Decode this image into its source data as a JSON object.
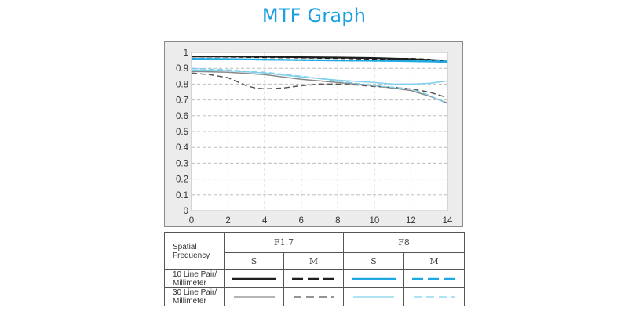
{
  "title": "MTF Graph",
  "chart_data": {
    "type": "line",
    "xlim": [
      0,
      14
    ],
    "ylim": [
      0,
      1
    ],
    "x_ticks": [
      "0",
      "2",
      "4",
      "6",
      "8",
      "10",
      "12",
      "14"
    ],
    "y_ticks": [
      "0",
      "0.1",
      "0.2",
      "0.3",
      "0.4",
      "0.5",
      "0.6",
      "0.7",
      "0.8",
      "0.9",
      "1"
    ],
    "grid": true,
    "colors": {
      "black": "#1e1e1e",
      "dark_gray": "#555555",
      "gray": "#888888",
      "blue": "#1fa9e0",
      "light_blue": "#7fd0ec"
    },
    "series": [
      {
        "aperture": "F1.7",
        "frequency": "10 Line Pair/ Millimeter",
        "direction": "S",
        "style": "solid",
        "color_key": "black",
        "x": [
          0,
          2,
          4,
          6,
          8,
          10,
          12,
          13,
          14
        ],
        "y": [
          0.975,
          0.975,
          0.973,
          0.97,
          0.968,
          0.965,
          0.958,
          0.953,
          0.948
        ]
      },
      {
        "aperture": "F1.7",
        "frequency": "10 Line Pair/ Millimeter",
        "direction": "M",
        "style": "dashed",
        "color_key": "black",
        "x": [
          0,
          2,
          4,
          6,
          8,
          10,
          12,
          13,
          14
        ],
        "y": [
          0.975,
          0.973,
          0.97,
          0.968,
          0.965,
          0.96,
          0.96,
          0.955,
          0.935
        ]
      },
      {
        "aperture": "F1.7",
        "frequency": "30 Line Pair/ Millimeter",
        "direction": "S",
        "style": "solid",
        "color_key": "gray",
        "x": [
          0,
          2,
          4,
          6,
          8,
          10,
          12,
          13,
          14
        ],
        "y": [
          0.88,
          0.875,
          0.86,
          0.83,
          0.81,
          0.79,
          0.76,
          0.725,
          0.68
        ]
      },
      {
        "aperture": "F1.7",
        "frequency": "30 Line Pair/ Millimeter",
        "direction": "M",
        "style": "dashed",
        "color_key": "dark_gray",
        "x": [
          0,
          1,
          2,
          3,
          3.5,
          4,
          5,
          6,
          7,
          8,
          9,
          10,
          11,
          12,
          13,
          14
        ],
        "y": [
          0.87,
          0.86,
          0.84,
          0.79,
          0.775,
          0.77,
          0.775,
          0.79,
          0.8,
          0.8,
          0.795,
          0.785,
          0.78,
          0.77,
          0.75,
          0.715
        ]
      },
      {
        "aperture": "F8",
        "frequency": "10 Line Pair/ Millimeter",
        "direction": "S",
        "style": "solid",
        "color_key": "blue",
        "x": [
          0,
          2,
          4,
          6,
          8,
          10,
          12,
          13,
          14
        ],
        "y": [
          0.96,
          0.958,
          0.955,
          0.952,
          0.95,
          0.948,
          0.945,
          0.943,
          0.94
        ]
      },
      {
        "aperture": "F8",
        "frequency": "10 Line Pair/ Millimeter",
        "direction": "M",
        "style": "dashed",
        "color_key": "blue",
        "x": [
          0,
          2,
          4,
          6,
          8,
          10,
          12,
          13,
          14
        ],
        "y": [
          0.96,
          0.958,
          0.955,
          0.952,
          0.95,
          0.948,
          0.946,
          0.945,
          0.945
        ]
      },
      {
        "aperture": "F8",
        "frequency": "30 Line Pair/ Millimeter",
        "direction": "S",
        "style": "solid",
        "color_key": "light_blue",
        "x": [
          0,
          2,
          4,
          6,
          8,
          10,
          11,
          12,
          13,
          14
        ],
        "y": [
          0.89,
          0.885,
          0.87,
          0.845,
          0.825,
          0.81,
          0.8,
          0.8,
          0.805,
          0.82
        ]
      },
      {
        "aperture": "F8",
        "frequency": "30 Line Pair/ Millimeter",
        "direction": "M",
        "style": "dashed",
        "color_key": "light_blue",
        "x": [
          0,
          2,
          4,
          6,
          8,
          10,
          12,
          13,
          14
        ],
        "y": [
          0.9,
          0.89,
          0.875,
          0.85,
          0.82,
          0.79,
          0.77,
          0.73,
          0.675
        ]
      }
    ]
  },
  "legend": {
    "spatial_frequency_label": "Spatial Frequency",
    "apertures": [
      "F1.7",
      "F8"
    ],
    "directions": [
      "S",
      "M",
      "S",
      "M"
    ],
    "rows": [
      "10 Line Pair/ Millimeter",
      "30 Line Pair/ Millimeter"
    ]
  }
}
